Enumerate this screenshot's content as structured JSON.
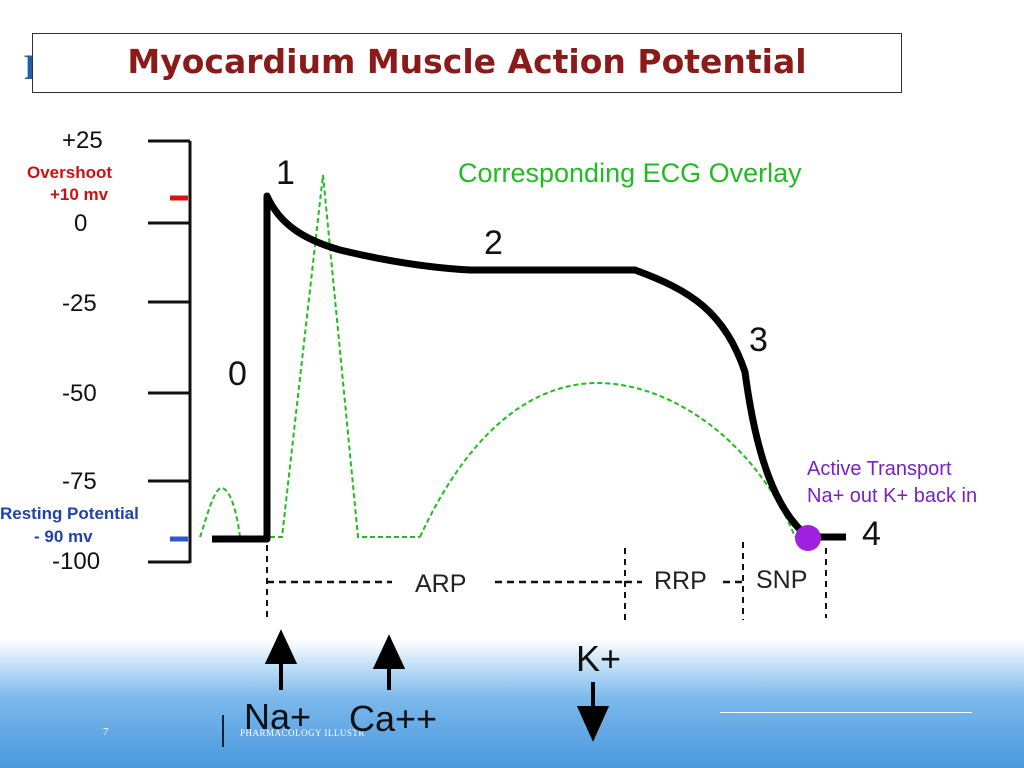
{
  "slide": {
    "title": "Myocardium Muscle Action Potential",
    "logo_letter": "P",
    "page_number": "7",
    "footer_text": "PHARMACOLOGY ILLUSTR"
  },
  "axis": {
    "ticks": [
      {
        "label": "+25",
        "value": 25
      },
      {
        "label": "0",
        "value": 0
      },
      {
        "label": "-25",
        "value": -25
      },
      {
        "label": "-50",
        "value": -50
      },
      {
        "label": "-75",
        "value": -75
      },
      {
        "label": "-100",
        "value": -100
      }
    ],
    "overshoot_label_1": "Overshoot",
    "overshoot_label_2": "+10 mv",
    "resting_label_1": "Resting Potential",
    "resting_label_2": "- 90 mv"
  },
  "phases": [
    "0",
    "1",
    "2",
    "3",
    "4"
  ],
  "ecg_label": "Corresponding ECG Overlay",
  "active_transport_1": "Active Transport",
  "active_transport_2": "Na+ out  K+ back in",
  "periods": {
    "arp": "ARP",
    "rrp": "RRP",
    "snp": "SNP"
  },
  "ions": {
    "na": "Na+",
    "ca": "Ca++",
    "k": "K+"
  },
  "colors": {
    "title": "#8b1a1a",
    "ecg": "#22bb22",
    "overshoot_marker": "#dd1111",
    "resting_marker": "#3355cc",
    "active_transport": "#7a22c0",
    "dot": "#a020e0"
  }
}
